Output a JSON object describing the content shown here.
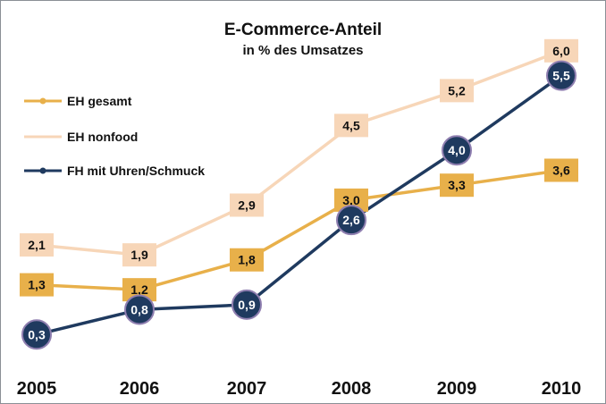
{
  "chart_data": {
    "type": "line",
    "title": "E-Commerce-Anteil",
    "subtitle": "in % des Umsatzes",
    "categories": [
      "2005",
      "2006",
      "2007",
      "2008",
      "2009",
      "2010"
    ],
    "legend_position": "top-left",
    "grid": false,
    "series": [
      {
        "name": "EH gesamt",
        "color": "#E8B04A",
        "values": [
          1.3,
          1.2,
          1.8,
          3.0,
          3.3,
          3.6
        ],
        "labels": [
          "1,3",
          "1,2",
          "1,8",
          "3,0",
          "3,3",
          "3,6"
        ]
      },
      {
        "name": "EH nonfood",
        "color": "#F7D6B8",
        "values": [
          2.1,
          1.9,
          2.9,
          4.5,
          5.2,
          6.0
        ],
        "labels": [
          "2,1",
          "1,9",
          "2,9",
          "4,5",
          "5,2",
          "6,0"
        ]
      },
      {
        "name": "FH mit Uhren/Schmuck",
        "color": "#1F3A5F",
        "values": [
          0.3,
          0.8,
          0.9,
          2.6,
          4.0,
          5.5
        ],
        "labels": [
          "0,3",
          "0,8",
          "0,9",
          "2,6",
          "4,0",
          "5,5"
        ]
      }
    ]
  }
}
